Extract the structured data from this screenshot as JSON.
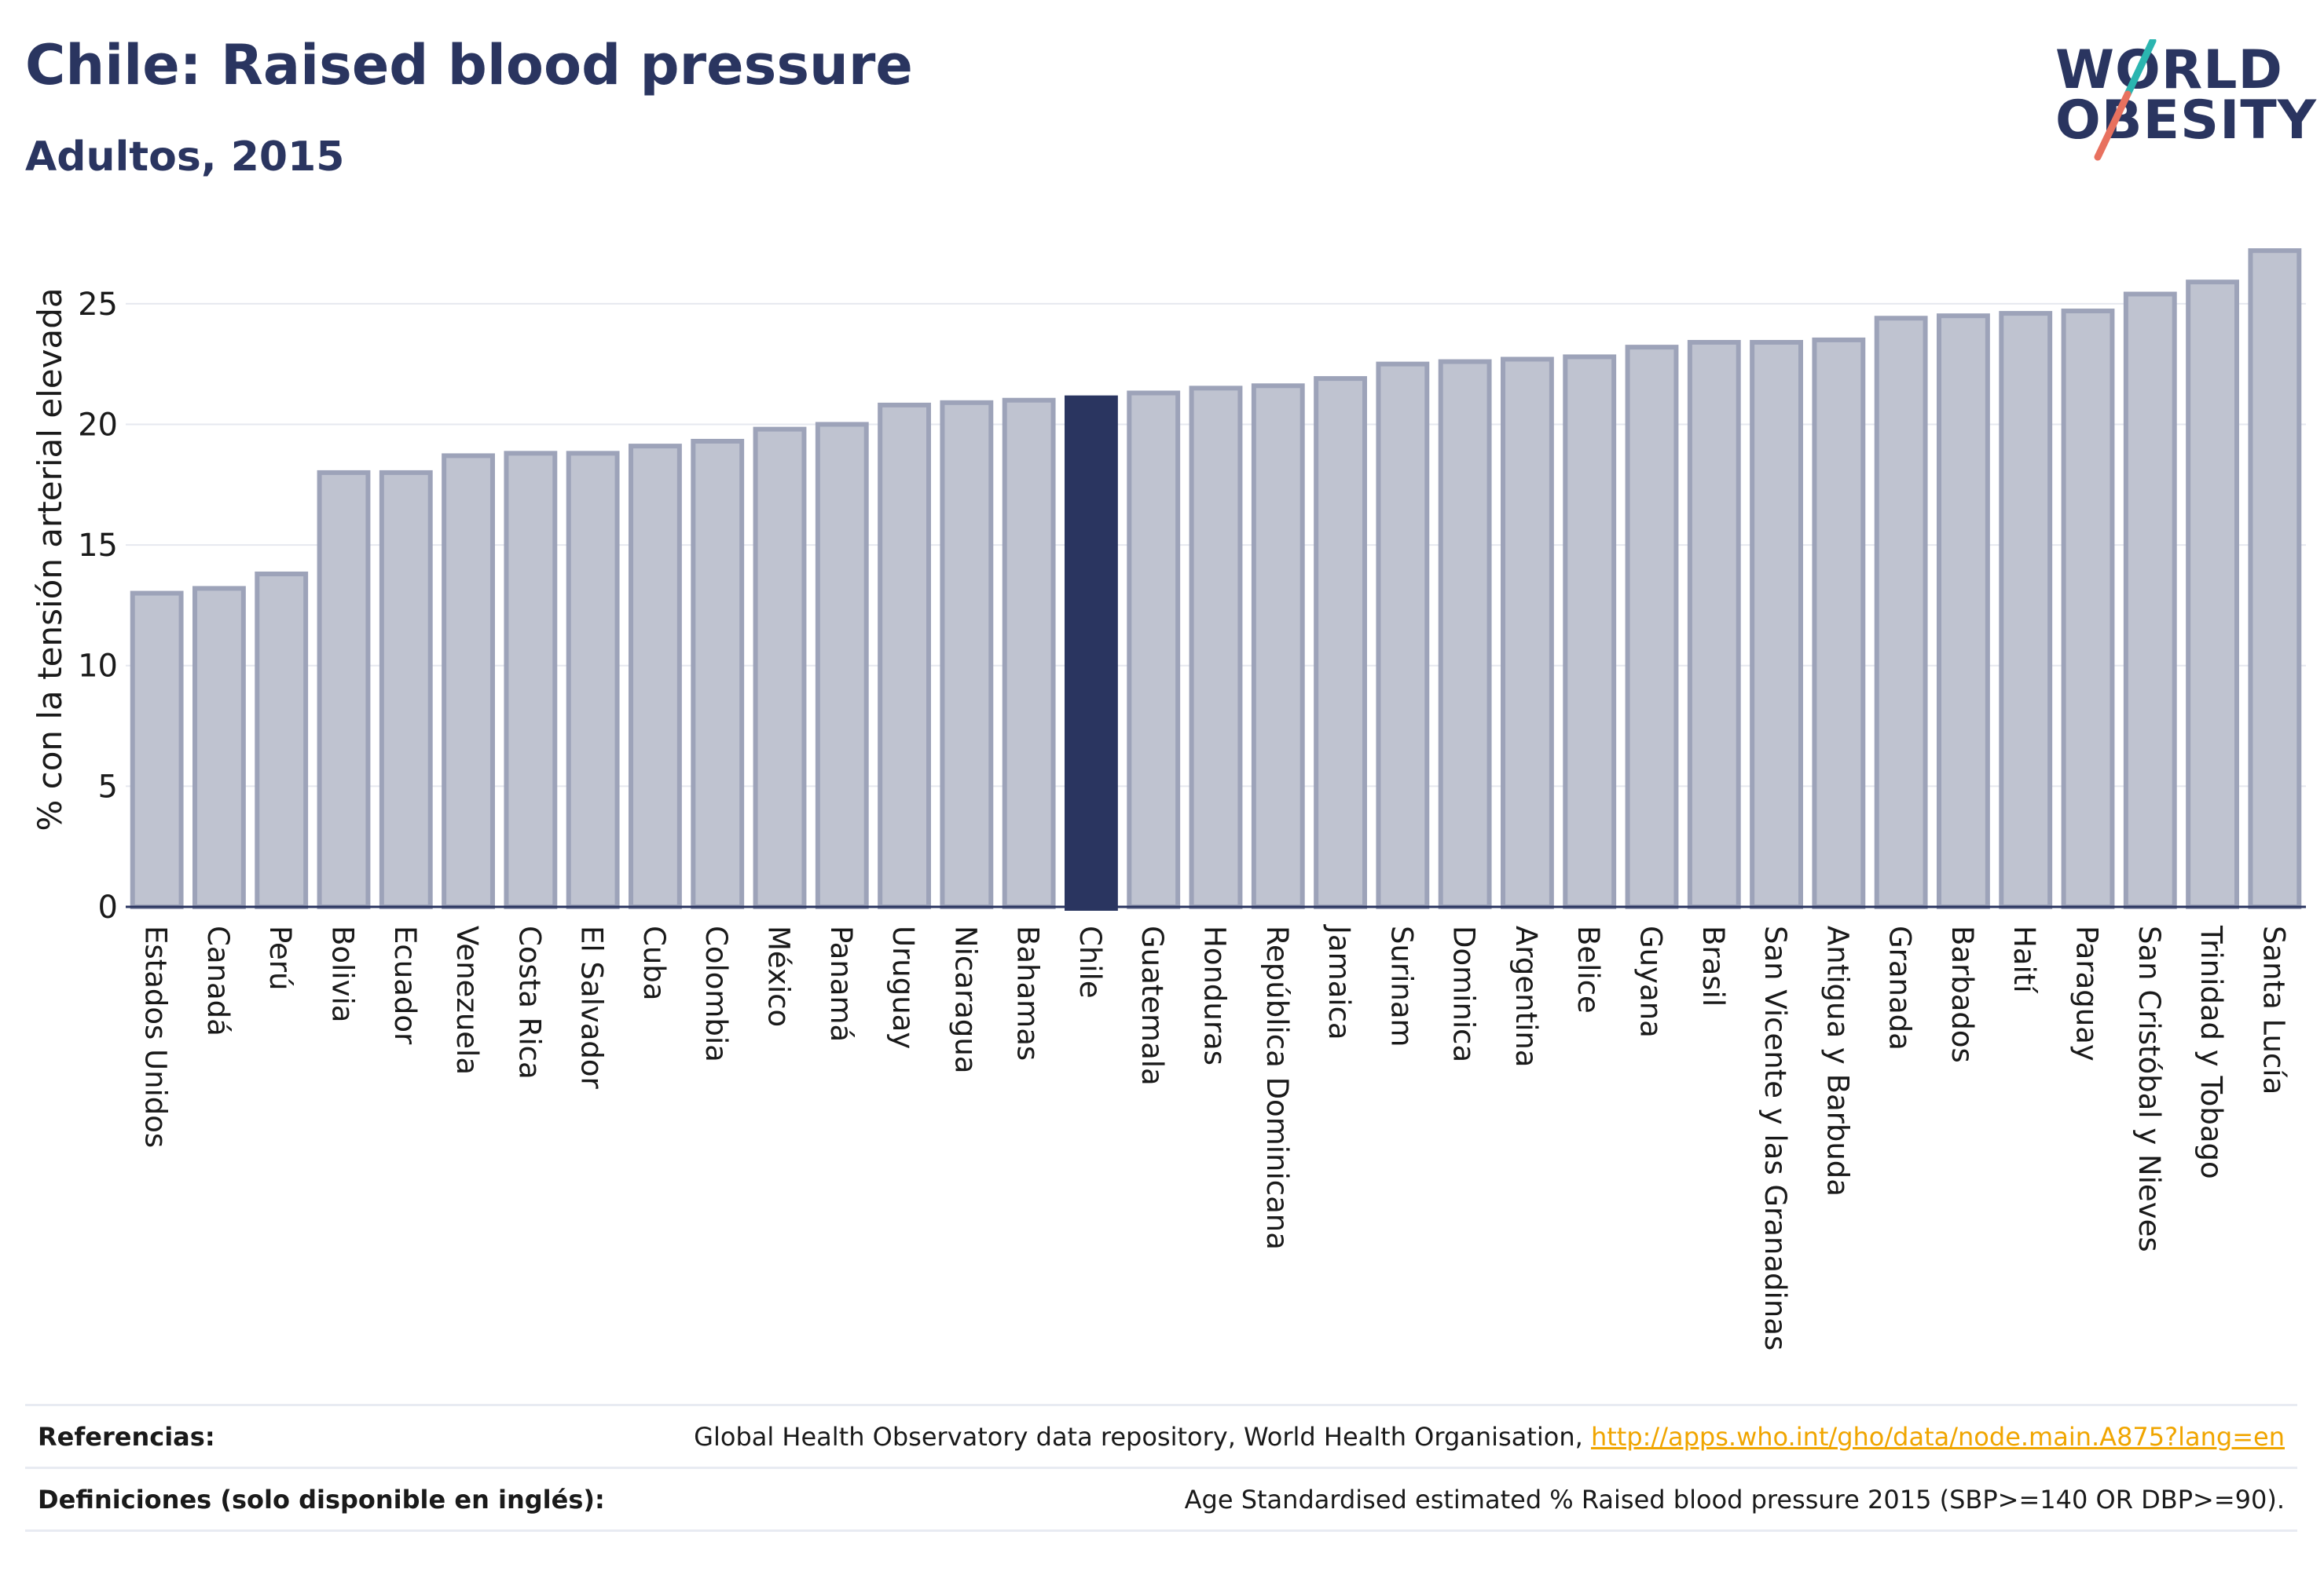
{
  "header": {
    "title": "Chile: Raised blood pressure",
    "subtitle": "Adultos, 2015",
    "logo_line1": "WORLD",
    "logo_line2": "OBESITY"
  },
  "colors": {
    "title": "#2a3560",
    "bar_default": "#bfc3d0",
    "bar_border": "#9da3b9",
    "bar_highlight": "#2a3560",
    "link": "#f0a500",
    "logo_slash_top": "#2bb5b0",
    "logo_slash_bottom": "#e8715f"
  },
  "chart_data": {
    "type": "bar",
    "ylabel": "% con la tensión arterial elevada",
    "xlabel": "",
    "ylim": [
      0,
      27.5
    ],
    "yticks": [
      0,
      5,
      10,
      15,
      20,
      25
    ],
    "grid": true,
    "highlight": "Chile",
    "categories": [
      "Estados Unidos",
      "Canadá",
      "Perú",
      "Bolivia",
      "Ecuador",
      "Venezuela",
      "Costa Rica",
      "El Salvador",
      "Cuba",
      "Colombia",
      "México",
      "Panamá",
      "Uruguay",
      "Nicaragua",
      "Bahamas",
      "Chile",
      "Guatemala",
      "Honduras",
      "República Dominicana",
      "Jamaica",
      "Surinam",
      "Dominica",
      "Argentina",
      "Belice",
      "Guyana",
      "Brasil",
      "San Vicente y las Granadinas",
      "Antigua y Barbuda",
      "Granada",
      "Barbados",
      "Haití",
      "Paraguay",
      "San Cristóbal y Nieves",
      "Trinidad y Tobago",
      "Santa Lucía"
    ],
    "values": [
      13.0,
      13.2,
      13.8,
      18.0,
      18.0,
      18.7,
      18.8,
      18.8,
      19.1,
      19.3,
      19.8,
      20.0,
      20.8,
      20.9,
      21.0,
      21.1,
      21.3,
      21.5,
      21.6,
      21.9,
      22.5,
      22.6,
      22.7,
      22.8,
      23.2,
      23.4,
      23.4,
      23.5,
      24.4,
      24.5,
      24.6,
      24.7,
      25.4,
      25.9,
      27.2
    ]
  },
  "footer": {
    "references_label": "Referencias:",
    "references_text": "Global Health Observatory data repository, World Health Organisation, ",
    "references_link": "http://apps.who.int/gho/data/node.main.A875?lang=en",
    "definitions_label": "Definiciones (solo disponible en inglés):",
    "definitions_text": "Age Standardised estimated % Raised blood pressure 2015 (SBP>=140 OR DBP>=90)."
  }
}
